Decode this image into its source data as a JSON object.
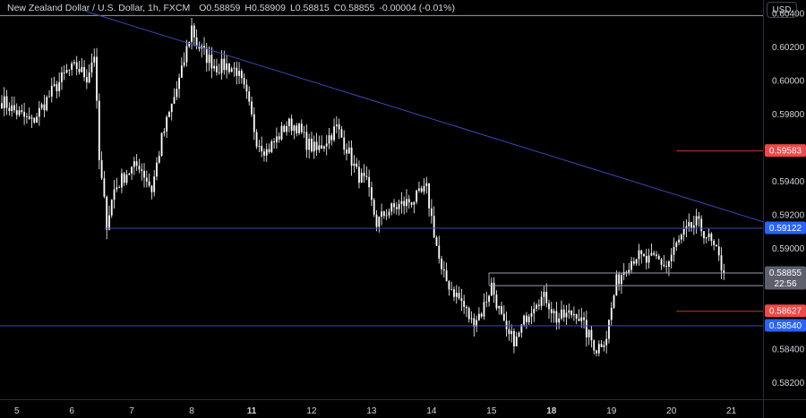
{
  "legend": {
    "symbol": "New Zealand Dollar / U.S. Dollar, 1h, FXCM",
    "open_label": "O",
    "open": "0.58859",
    "high_label": "H",
    "high": "0.58909",
    "low_label": "L",
    "low": "0.58815",
    "close_label": "C",
    "close": "0.58855",
    "change": "-0.00004 (-0.01%)"
  },
  "currency_button": "USD",
  "colors": {
    "background": "#000000",
    "candle": "#ffffff",
    "trendline": "#3a48b8",
    "support_line": "#3a48b8",
    "resistance_line": "#c03434",
    "grey_line": "#9a9ea8",
    "red_label": "#f04848",
    "blue_label": "#2962ff",
    "grey_label": "#5d606b",
    "axis_text": "#d1d4dc"
  },
  "chart_data": {
    "type": "candlestick",
    "ylim": [
      0.581,
      0.6048
    ],
    "y_ticks": [
      "0.60400",
      "0.60200",
      "0.60000",
      "0.59800",
      "0.59400",
      "0.59200",
      "0.59000",
      "0.58400",
      "0.58200"
    ],
    "x_ticks": [
      {
        "label": "5",
        "bar": 6,
        "bold": false
      },
      {
        "label": "6",
        "bar": 28,
        "bold": false
      },
      {
        "label": "7",
        "bar": 52,
        "bold": false
      },
      {
        "label": "8",
        "bar": 76,
        "bold": false
      },
      {
        "label": "11",
        "bar": 100,
        "bold": true
      },
      {
        "label": "12",
        "bar": 124,
        "bold": false
      },
      {
        "label": "13",
        "bar": 148,
        "bold": false
      },
      {
        "label": "14",
        "bar": 172,
        "bold": false
      },
      {
        "label": "15",
        "bar": 196,
        "bold": false
      },
      {
        "label": "18",
        "bar": 220,
        "bold": true
      },
      {
        "label": "19",
        "bar": 244,
        "bold": false
      },
      {
        "label": "20",
        "bar": 268,
        "bold": false
      },
      {
        "label": "21",
        "bar": 292,
        "bold": false
      }
    ],
    "price_labels": [
      {
        "text": "0.59583",
        "value": 0.59583,
        "kind": "red"
      },
      {
        "text": "0.59122",
        "value": 0.59122,
        "kind": "blue"
      },
      {
        "text": "0.58855",
        "value": 0.58855,
        "kind": "grey",
        "sub": "22:56"
      },
      {
        "text": "0.58627",
        "value": 0.58627,
        "kind": "red"
      },
      {
        "text": "0.58540",
        "value": 0.5854,
        "kind": "blue"
      }
    ],
    "horizontal_lines": [
      {
        "value": 0.6039,
        "from_bar": -2,
        "kind": "grey"
      },
      {
        "value": 0.59122,
        "from_bar": 41,
        "kind": "blue"
      },
      {
        "value": 0.5854,
        "from_bar": -2,
        "kind": "blue"
      },
      {
        "value": 0.59583,
        "from_bar": 270,
        "kind": "red"
      },
      {
        "value": 0.58627,
        "from_bar": 270,
        "kind": "red"
      },
      {
        "value": 0.58855,
        "from_bar": 195,
        "kind": "grey"
      },
      {
        "value": 0.5878,
        "from_bar": 195,
        "kind": "grey"
      }
    ],
    "trendline": {
      "from": [
        32,
        0.6042
      ],
      "to": [
        302,
        0.5917
      ]
    },
    "anchors": [
      [
        0,
        0.5988
      ],
      [
        5,
        0.5982
      ],
      [
        12,
        0.5975
      ],
      [
        20,
        0.5993
      ],
      [
        26,
        0.6005
      ],
      [
        30,
        0.6008
      ],
      [
        34,
        0.6002
      ],
      [
        37,
        0.6016
      ],
      [
        39,
        0.5952
      ],
      [
        42,
        0.5915
      ],
      [
        45,
        0.5935
      ],
      [
        50,
        0.5945
      ],
      [
        55,
        0.595
      ],
      [
        60,
        0.5935
      ],
      [
        64,
        0.5965
      ],
      [
        68,
        0.5985
      ],
      [
        72,
        0.6005
      ],
      [
        76,
        0.6032
      ],
      [
        78,
        0.6022
      ],
      [
        82,
        0.6014
      ],
      [
        86,
        0.6008
      ],
      [
        90,
        0.6009
      ],
      [
        94,
        0.6006
      ],
      [
        98,
        0.599
      ],
      [
        102,
        0.5965
      ],
      [
        106,
        0.5958
      ],
      [
        110,
        0.5965
      ],
      [
        114,
        0.5974
      ],
      [
        118,
        0.5973
      ],
      [
        122,
        0.5963
      ],
      [
        126,
        0.5958
      ],
      [
        130,
        0.5965
      ],
      [
        134,
        0.5972
      ],
      [
        138,
        0.596
      ],
      [
        142,
        0.5945
      ],
      [
        146,
        0.5938
      ],
      [
        150,
        0.5915
      ],
      [
        154,
        0.5922
      ],
      [
        160,
        0.5926
      ],
      [
        166,
        0.593
      ],
      [
        170,
        0.5935
      ],
      [
        172,
        0.5918
      ],
      [
        176,
        0.5885
      ],
      [
        180,
        0.5876
      ],
      [
        184,
        0.5868
      ],
      [
        188,
        0.5856
      ],
      [
        192,
        0.5862
      ],
      [
        196,
        0.5878
      ],
      [
        198,
        0.5868
      ],
      [
        202,
        0.5848
      ],
      [
        206,
        0.5845
      ],
      [
        210,
        0.586
      ],
      [
        214,
        0.587
      ],
      [
        218,
        0.587
      ],
      [
        222,
        0.5858
      ],
      [
        226,
        0.586
      ],
      [
        230,
        0.5862
      ],
      [
        234,
        0.585
      ],
      [
        238,
        0.584
      ],
      [
        242,
        0.5848
      ],
      [
        246,
        0.588
      ],
      [
        250,
        0.589
      ],
      [
        254,
        0.5896
      ],
      [
        258,
        0.5892
      ],
      [
        262,
        0.5894
      ],
      [
        266,
        0.5889
      ],
      [
        270,
        0.5902
      ],
      [
        274,
        0.591
      ],
      [
        278,
        0.5915
      ],
      [
        282,
        0.5908
      ],
      [
        286,
        0.5897
      ],
      [
        289,
        0.58855
      ]
    ]
  }
}
